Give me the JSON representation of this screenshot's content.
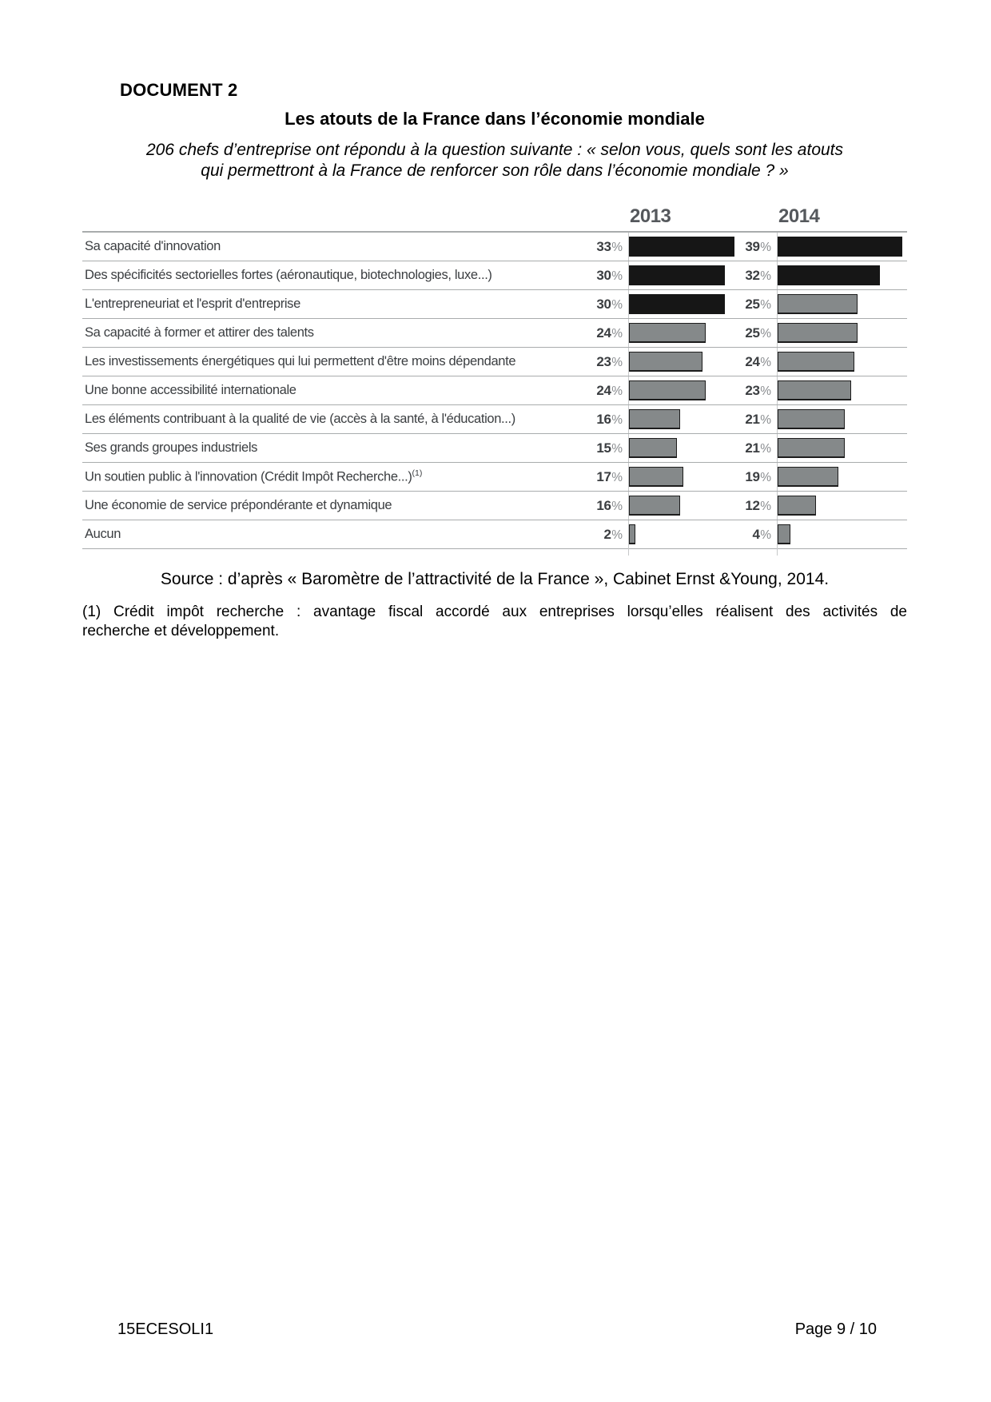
{
  "document": {
    "doc_label": "DOCUMENT 2",
    "title": "Les atouts de la France dans l’économie mondiale",
    "subtitle_line1": "206 chefs d’entreprise ont répondu à la question suivante : « selon vous, quels sont les atouts",
    "subtitle_line2": "qui permettront à la France de renforcer son rôle dans l’économie mondiale ? »",
    "source": "Source : d’après « Baromètre de l’attractivité de la France », Cabinet Ernst &Young, 2014.",
    "footnote_line1": "(1) Crédit impôt recherche : avantage fiscal accordé aux entreprises lorsqu’elles réalisent des activités de",
    "footnote_line2": "recherche et développement.",
    "footer_left": "15ECESOLI1",
    "footer_right": "Page 9 / 10"
  },
  "chart_data": {
    "type": "bar",
    "orientation": "horizontal",
    "title": "Les atouts de la France dans l’économie mondiale",
    "unit": "%",
    "xlim": [
      0,
      40
    ],
    "column_headers": [
      "2013",
      "2014"
    ],
    "categories": [
      "Sa capacité d'innovation",
      "Des spécificités sectorielles fortes (aéronautique, biotechnologies, luxe...)",
      "L'entrepreneuriat et l'esprit d'entreprise",
      "Sa capacité à former et attirer des talents",
      "Les investissements énergétiques qui lui permettent d'être moins dépendante",
      "Une bonne accessibilité internationale",
      "Les éléments contribuant à la qualité de vie (accès à la santé, à l'éducation...)",
      "Ses grands groupes industriels",
      "Un soutien public à l'innovation (Crédit Impôt Recherche...)",
      "Une économie de service prépondérante et dynamique",
      "Aucun"
    ],
    "category_superscripts": {
      "8": "(1)"
    },
    "series": [
      {
        "name": "2013",
        "values": [
          33,
          30,
          30,
          24,
          23,
          24,
          16,
          15,
          17,
          16,
          2
        ],
        "bar_colors": [
          "black",
          "black",
          "black",
          "gray",
          "gray",
          "gray",
          "gray",
          "gray",
          "gray",
          "gray",
          "gray"
        ]
      },
      {
        "name": "2014",
        "values": [
          39,
          32,
          25,
          25,
          24,
          23,
          21,
          21,
          19,
          12,
          4
        ],
        "bar_colors": [
          "black",
          "black",
          "gray",
          "gray",
          "gray",
          "gray",
          "gray",
          "gray",
          "gray",
          "gray",
          "gray"
        ]
      }
    ],
    "colors": {
      "black_bar": "#161616",
      "gray_bar": "#85898a",
      "bar_border": "#1d1d1d",
      "row_line": "#a9acad",
      "axis_line": "#c6c8c9",
      "chart_text": "#3b3e41",
      "header_text": "#55585c",
      "pct_sign": "#8a8d90"
    },
    "legend_position": "none",
    "grid": "horizontal row separators only"
  }
}
